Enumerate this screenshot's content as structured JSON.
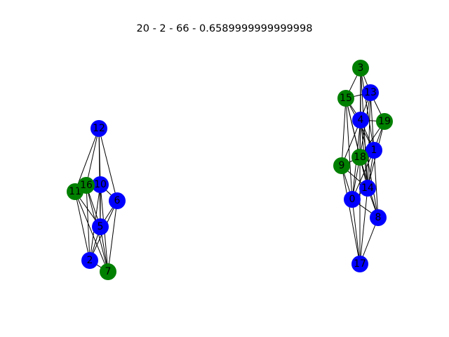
{
  "title": "20 - 2 - 66 - 0.6589999999999998",
  "colors": {
    "blue": "#0000ff",
    "green": "#008000",
    "edge": "#000000",
    "label": "#000000"
  },
  "nodes": [
    {
      "id": "0",
      "color": "blue"
    },
    {
      "id": "1",
      "color": "blue"
    },
    {
      "id": "2",
      "color": "blue"
    },
    {
      "id": "3",
      "color": "green"
    },
    {
      "id": "4",
      "color": "blue"
    },
    {
      "id": "5",
      "color": "blue"
    },
    {
      "id": "6",
      "color": "blue"
    },
    {
      "id": "7",
      "color": "green"
    },
    {
      "id": "8",
      "color": "blue"
    },
    {
      "id": "9",
      "color": "green"
    },
    {
      "id": "10",
      "color": "blue"
    },
    {
      "id": "11",
      "color": "green"
    },
    {
      "id": "12",
      "color": "blue"
    },
    {
      "id": "13",
      "color": "blue"
    },
    {
      "id": "14",
      "color": "blue"
    },
    {
      "id": "15",
      "color": "green"
    },
    {
      "id": "16",
      "color": "green"
    },
    {
      "id": "17",
      "color": "blue"
    },
    {
      "id": "18",
      "color": "green"
    },
    {
      "id": "19",
      "color": "green"
    }
  ],
  "edges": [
    [
      "12",
      "11"
    ],
    [
      "12",
      "16"
    ],
    [
      "12",
      "10"
    ],
    [
      "12",
      "5"
    ],
    [
      "12",
      "6"
    ],
    [
      "11",
      "16"
    ],
    [
      "11",
      "10"
    ],
    [
      "11",
      "5"
    ],
    [
      "11",
      "2"
    ],
    [
      "11",
      "7"
    ],
    [
      "16",
      "10"
    ],
    [
      "16",
      "5"
    ],
    [
      "16",
      "2"
    ],
    [
      "16",
      "7"
    ],
    [
      "10",
      "6"
    ],
    [
      "10",
      "5"
    ],
    [
      "10",
      "2"
    ],
    [
      "10",
      "7"
    ],
    [
      "6",
      "5"
    ],
    [
      "6",
      "2"
    ],
    [
      "6",
      "7"
    ],
    [
      "5",
      "2"
    ],
    [
      "5",
      "7"
    ],
    [
      "2",
      "7"
    ],
    [
      "3",
      "15"
    ],
    [
      "3",
      "13"
    ],
    [
      "3",
      "4"
    ],
    [
      "3",
      "1"
    ],
    [
      "3",
      "18"
    ],
    [
      "3",
      "14"
    ],
    [
      "15",
      "13"
    ],
    [
      "15",
      "4"
    ],
    [
      "15",
      "9"
    ],
    [
      "15",
      "18"
    ],
    [
      "15",
      "14"
    ],
    [
      "15",
      "0"
    ],
    [
      "15",
      "1"
    ],
    [
      "13",
      "4"
    ],
    [
      "13",
      "19"
    ],
    [
      "13",
      "1"
    ],
    [
      "13",
      "18"
    ],
    [
      "13",
      "14"
    ],
    [
      "4",
      "19"
    ],
    [
      "4",
      "1"
    ],
    [
      "4",
      "18"
    ],
    [
      "4",
      "9"
    ],
    [
      "4",
      "14"
    ],
    [
      "4",
      "0"
    ],
    [
      "4",
      "8"
    ],
    [
      "19",
      "1"
    ],
    [
      "19",
      "18"
    ],
    [
      "19",
      "14"
    ],
    [
      "1",
      "18"
    ],
    [
      "1",
      "14"
    ],
    [
      "1",
      "8"
    ],
    [
      "1",
      "0"
    ],
    [
      "9",
      "18"
    ],
    [
      "9",
      "14"
    ],
    [
      "9",
      "0"
    ],
    [
      "9",
      "17"
    ],
    [
      "18",
      "14"
    ],
    [
      "18",
      "0"
    ],
    [
      "18",
      "8"
    ],
    [
      "18",
      "17"
    ],
    [
      "14",
      "0"
    ],
    [
      "14",
      "8"
    ],
    [
      "14",
      "17"
    ],
    [
      "0",
      "8"
    ],
    [
      "0",
      "17"
    ],
    [
      "8",
      "17"
    ]
  ]
}
